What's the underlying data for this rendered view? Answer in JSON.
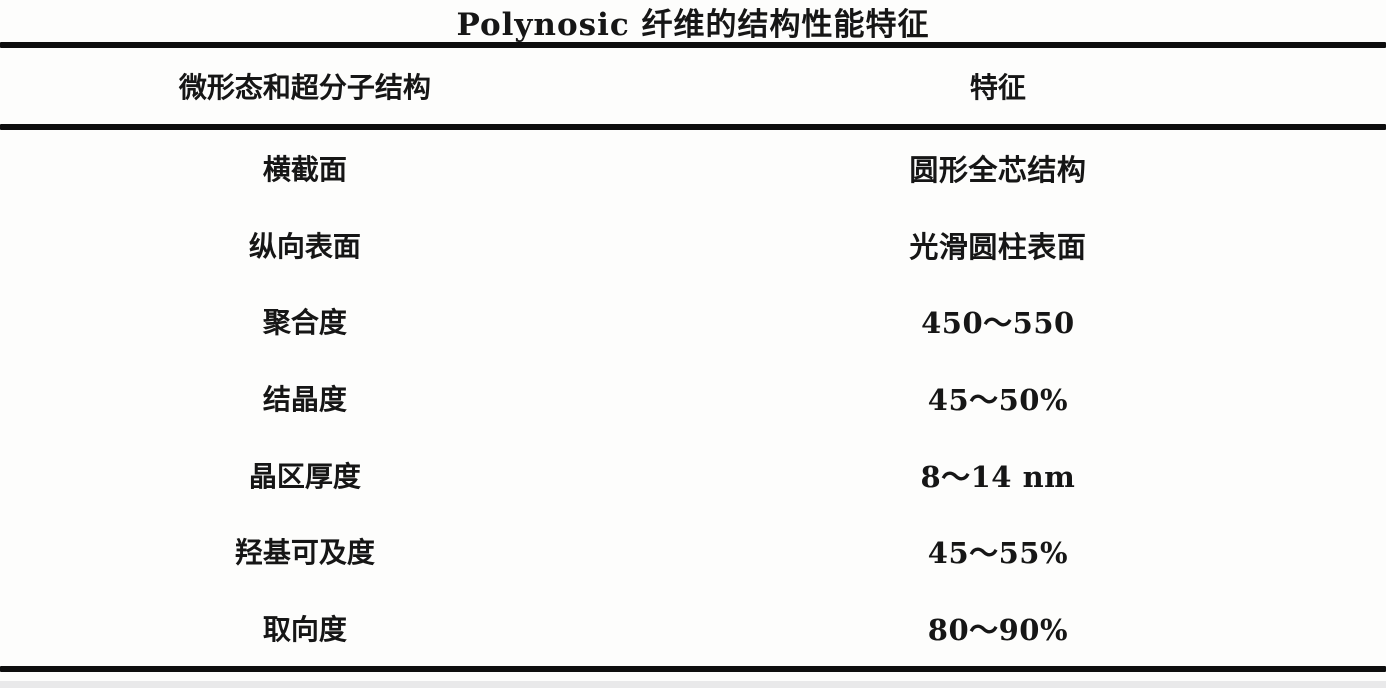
{
  "table": {
    "title": "Polynosic 纤维的结构性能特征",
    "columns": {
      "property": "微形态和超分子结构",
      "value": "特征"
    },
    "rows": [
      {
        "property": "横截面",
        "value": "圆形全芯结构"
      },
      {
        "property": "纵向表面",
        "value": "光滑圆柱表面"
      },
      {
        "property": "聚合度",
        "value": "450～550"
      },
      {
        "property": "结晶度",
        "value": "45～50%"
      },
      {
        "property": "晶区厚度",
        "value": "8～14 nm"
      },
      {
        "property": "羟基可及度",
        "value": "45～55%"
      },
      {
        "property": "取向度",
        "value": "80～90%"
      }
    ]
  },
  "colors": {
    "text": "#161616",
    "rule": "#0e0e0e",
    "background": "#fdfdfc"
  }
}
